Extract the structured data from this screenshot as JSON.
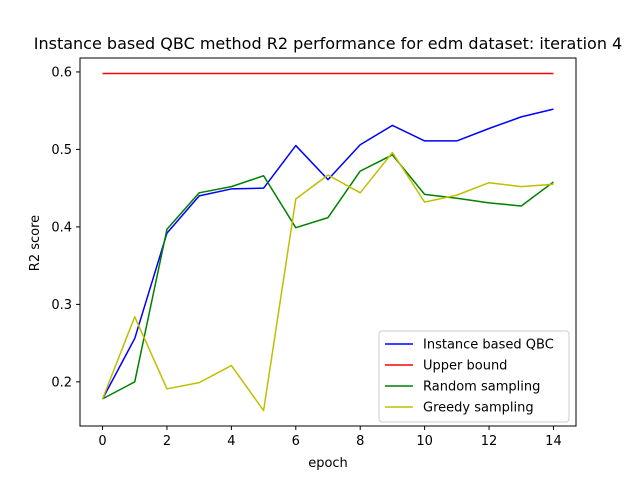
{
  "chart_data": {
    "type": "line",
    "title": "Instance based QBC method R2 performance for edm dataset: iteration 4",
    "xlabel": "epoch",
    "ylabel": "R2 score",
    "xlim": [
      -0.7,
      14.7
    ],
    "ylim": [
      0.143,
      0.618
    ],
    "xticks": [
      0,
      2,
      4,
      6,
      8,
      10,
      12,
      14
    ],
    "yticks": [
      0.2,
      0.3,
      0.4,
      0.5,
      0.6
    ],
    "grid": false,
    "legend_position": "lower-right",
    "x": [
      0,
      1,
      2,
      3,
      4,
      5,
      6,
      7,
      8,
      9,
      10,
      11,
      12,
      13,
      14
    ],
    "series": [
      {
        "name": "Instance based QBC",
        "color": "#0000ff",
        "values": [
          0.178,
          0.256,
          0.392,
          0.44,
          0.449,
          0.45,
          0.505,
          0.461,
          0.506,
          0.531,
          0.511,
          0.511,
          0.527,
          0.542,
          0.552
        ]
      },
      {
        "name": "Upper bound",
        "color": "#ff0000",
        "values": [
          0.598,
          0.598,
          0.598,
          0.598,
          0.598,
          0.598,
          0.598,
          0.598,
          0.598,
          0.598,
          0.598,
          0.598,
          0.598,
          0.598,
          0.598
        ]
      },
      {
        "name": "Random sampling",
        "color": "#008000",
        "values": [
          0.178,
          0.2,
          0.397,
          0.444,
          0.452,
          0.466,
          0.399,
          0.412,
          0.472,
          0.493,
          0.442,
          0.437,
          0.431,
          0.427,
          0.458
        ]
      },
      {
        "name": "Greedy sampling",
        "color": "#bfbf00",
        "values": [
          0.178,
          0.284,
          0.191,
          0.199,
          0.221,
          0.163,
          0.436,
          0.467,
          0.444,
          0.496,
          0.432,
          0.441,
          0.457,
          0.452,
          0.455
        ]
      }
    ]
  }
}
